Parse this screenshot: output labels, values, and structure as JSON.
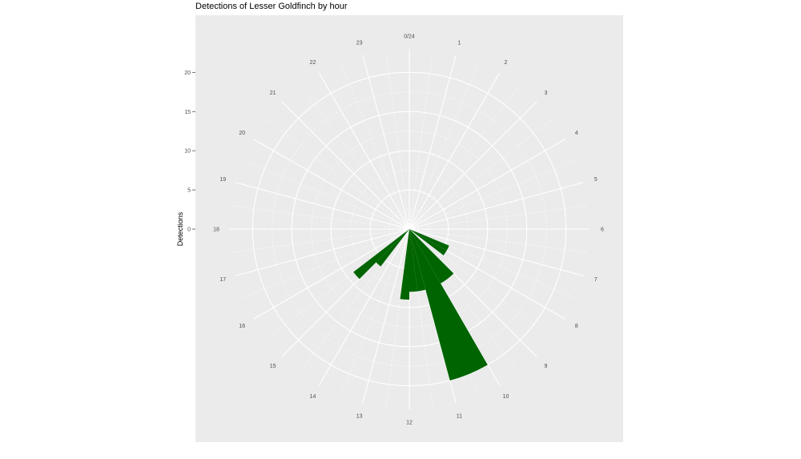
{
  "chart_data": {
    "type": "bar",
    "coord": "polar",
    "title": "Detections of Lesser Goldfinch by hour",
    "xlabel": "",
    "ylabel": "Detections",
    "categories": [
      "0/24",
      "1",
      "2",
      "3",
      "4",
      "5",
      "6",
      "7",
      "8",
      "9",
      "10",
      "11",
      "12",
      "13",
      "14",
      "15",
      "16",
      "17",
      "18",
      "19",
      "20",
      "21",
      "22",
      "23"
    ],
    "values": [
      0,
      0,
      0,
      0,
      0,
      0,
      0,
      0,
      0,
      0,
      0,
      0,
      0,
      0,
      0,
      0,
      0,
      0,
      0,
      0,
      0,
      0,
      0,
      0
    ],
    "bars": [
      {
        "hour_start": 7.5,
        "hour_end": 8.0,
        "value": 5.5
      },
      {
        "hour_start": 8.0,
        "hour_end": 8.5,
        "value": 5.5
      },
      {
        "hour_start": 9.0,
        "hour_end": 10.0,
        "value": 8
      },
      {
        "hour_start": 10.0,
        "hour_end": 11.0,
        "value": 20
      },
      {
        "hour_start": 11.0,
        "hour_end": 11.5,
        "value": 8
      },
      {
        "hour_start": 11.5,
        "hour_end": 12.0,
        "value": 8
      },
      {
        "hour_start": 12.0,
        "hour_end": 12.5,
        "value": 9
      },
      {
        "hour_start": 14.5,
        "hour_end": 15.0,
        "value": 6
      },
      {
        "hour_start": 15.0,
        "hour_end": 15.5,
        "value": 9
      }
    ],
    "ylim": [
      0,
      23
    ],
    "y_ticks": [
      0,
      5,
      10,
      15,
      20
    ],
    "grid": true,
    "bar_color": "#006400",
    "panel_color": "#ebebeb"
  }
}
